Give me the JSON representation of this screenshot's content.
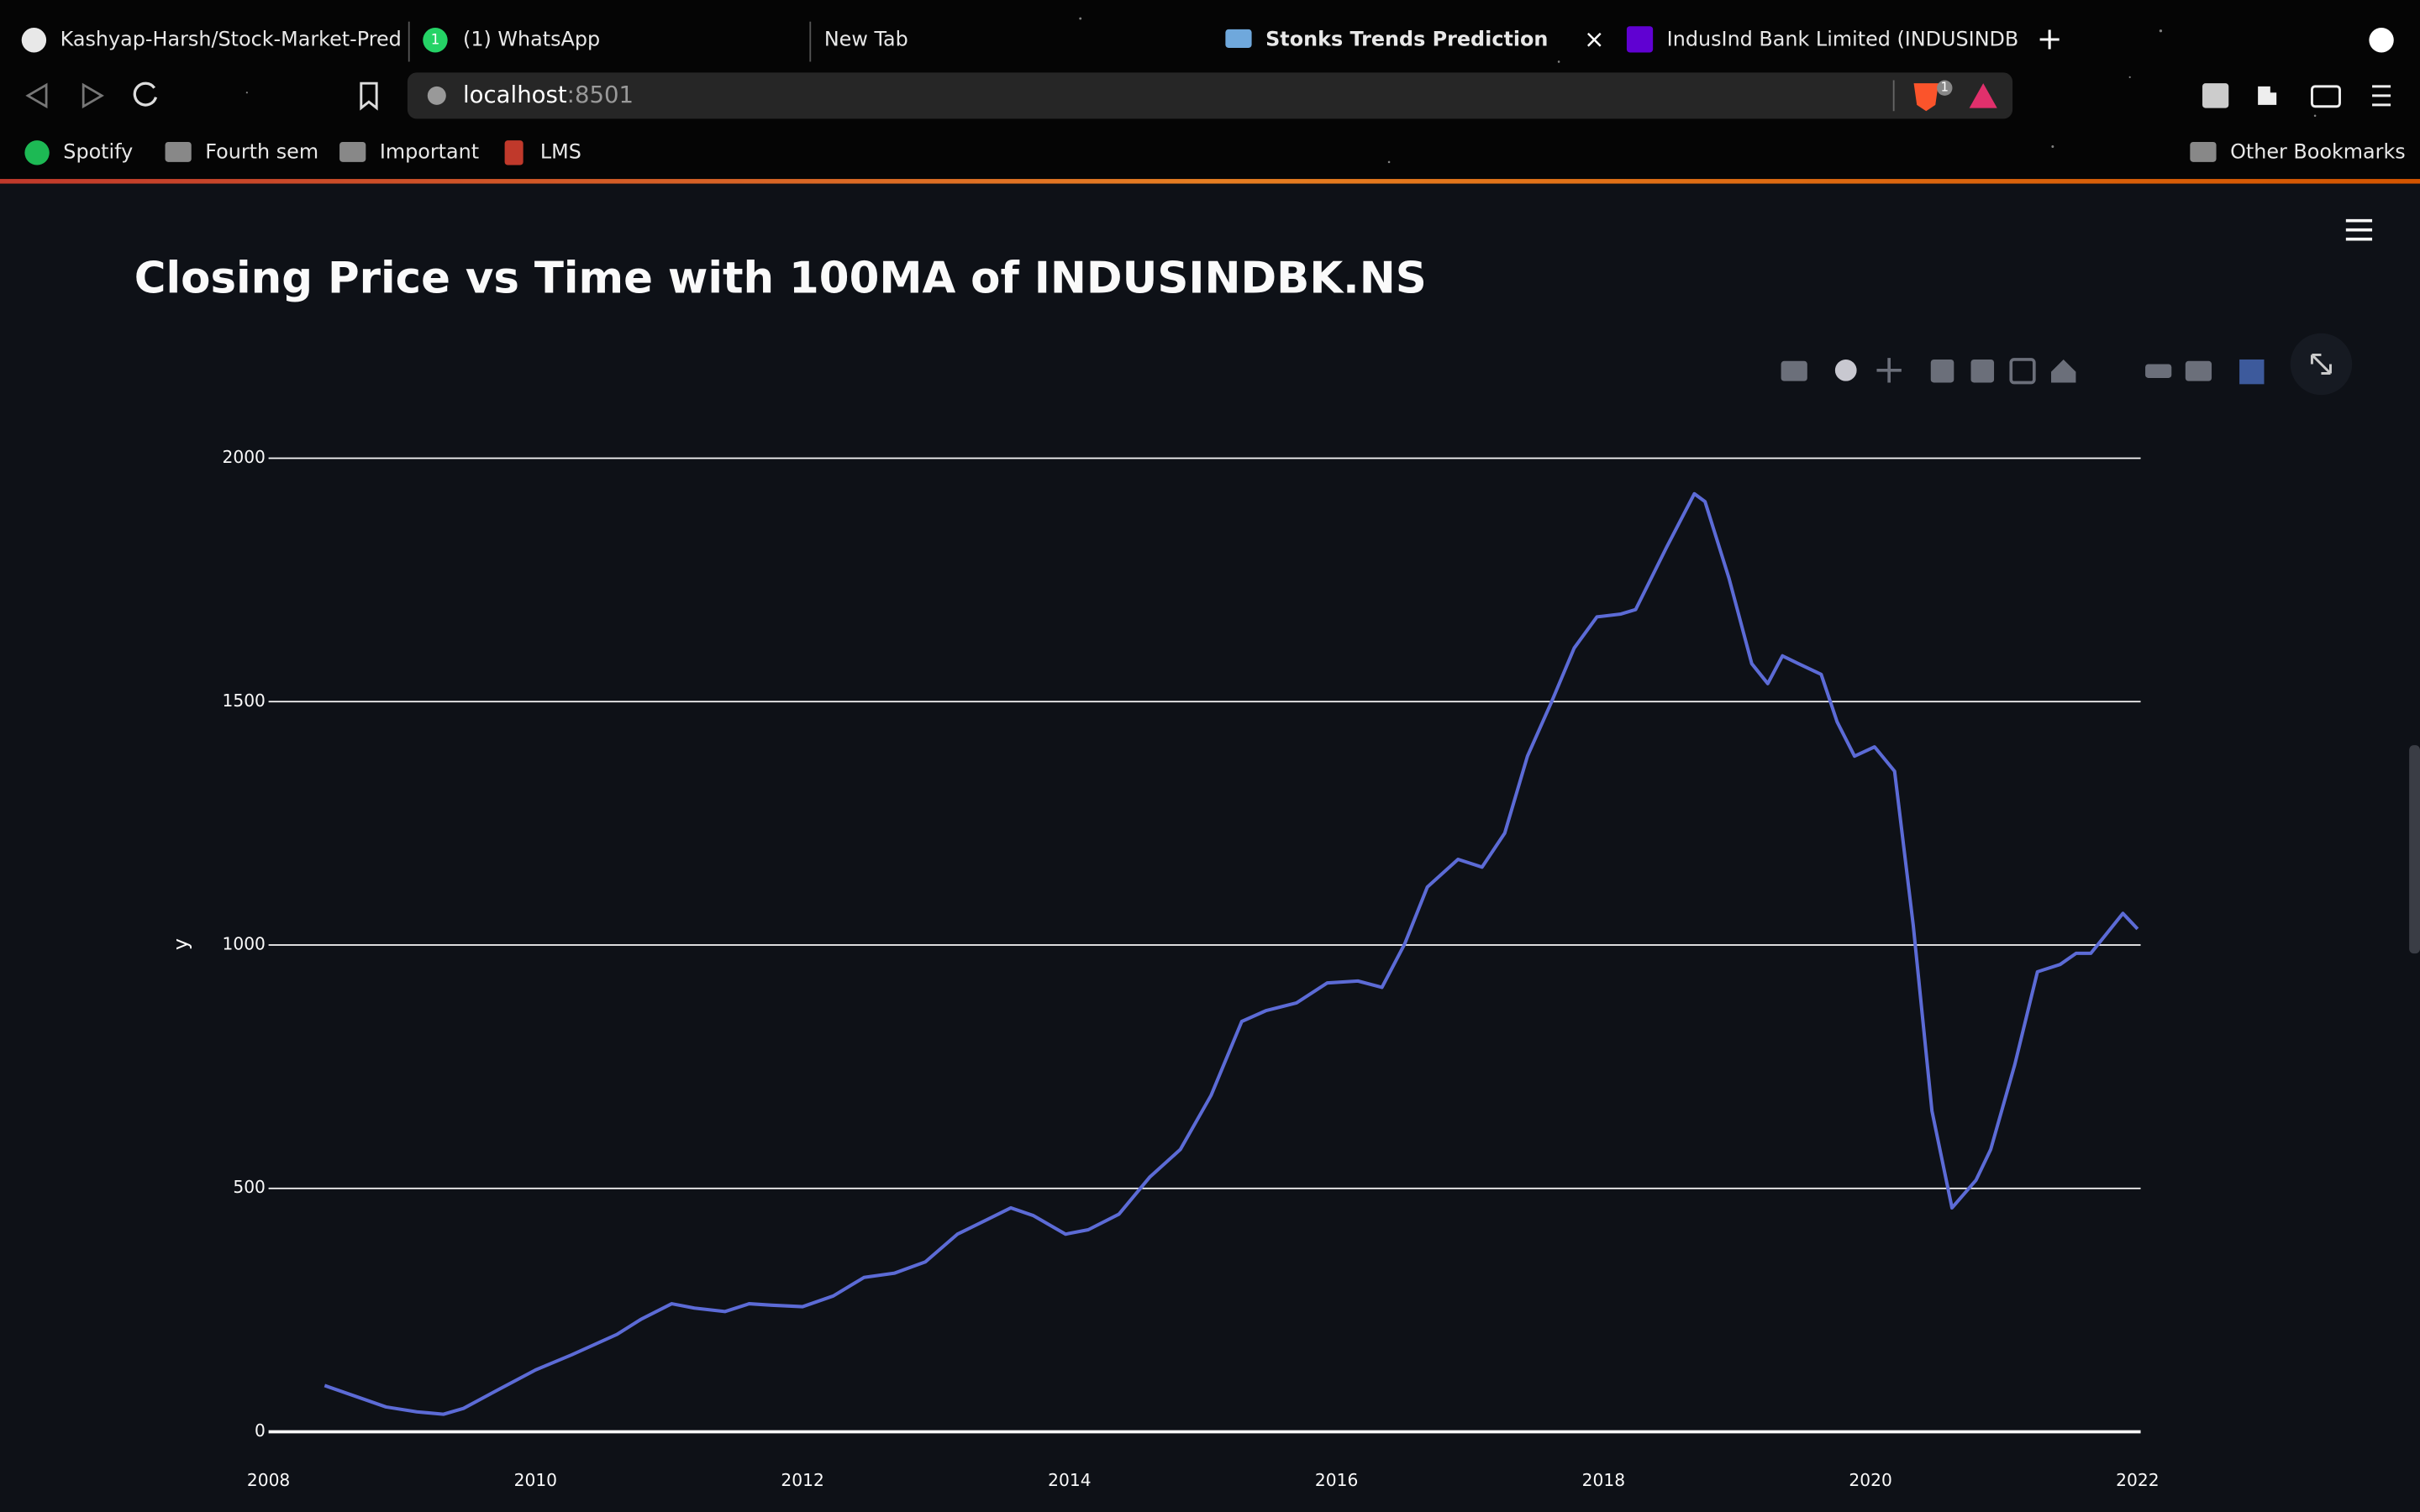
{
  "browser": {
    "tabs": [
      "Kashyap-Harsh/Stock-Market-Pred",
      "(1) WhatsApp",
      "New Tab",
      "Stonks Trends Prediction",
      "IndusInd Bank Limited (INDUSINDB"
    ],
    "whatsapp_badge": "1",
    "url": {
      "host": "localhost",
      "port": ":8501"
    },
    "shield_badge": "1",
    "bookmarks": [
      "Spotify",
      "Fourth sem",
      "Important",
      "LMS"
    ],
    "other_bookmarks": "Other Bookmarks"
  },
  "chart_data": {
    "type": "line",
    "title": "Closing Price vs Time with 100MA of INDUSINDBK.NS",
    "y_label": "y",
    "x": [
      2008.42,
      2008.65,
      2008.88,
      2009.11,
      2009.31,
      2009.46,
      2009.69,
      2010.0,
      2010.27,
      2010.61,
      2010.79,
      2011.02,
      2011.19,
      2011.42,
      2011.6,
      2011.77,
      2012.0,
      2012.23,
      2012.46,
      2012.69,
      2012.92,
      2013.16,
      2013.39,
      2013.56,
      2013.73,
      2013.97,
      2014.14,
      2014.37,
      2014.6,
      2014.83,
      2015.06,
      2015.29,
      2015.47,
      2015.7,
      2015.93,
      2016.16,
      2016.34,
      2016.51,
      2016.68,
      2016.91,
      2017.09,
      2017.26,
      2017.43,
      2017.61,
      2017.78,
      2017.95,
      2018.13,
      2018.24,
      2018.47,
      2018.68,
      2018.76,
      2018.94,
      2019.11,
      2019.23,
      2019.34,
      2019.46,
      2019.63,
      2019.75,
      2019.88,
      2020.03,
      2020.18,
      2020.32,
      2020.46,
      2020.61,
      2020.79,
      2020.9,
      2021.08,
      2021.25,
      2021.42,
      2021.54,
      2021.65,
      2021.75,
      2021.89,
      2022.0
    ],
    "series": [
      {
        "name": "100MA",
        "color": "#5c6bd6",
        "values": [
          95,
          73,
          51,
          41,
          36,
          48,
          82,
          127,
          158,
          200,
          231,
          263,
          254,
          247,
          263,
          260,
          257,
          279,
          317,
          326,
          349,
          406,
          437,
          460,
          444,
          406,
          415,
          447,
          523,
          580,
          691,
          843,
          865,
          881,
          922,
          926,
          913,
          1002,
          1119,
          1176,
          1160,
          1230,
          1388,
          1499,
          1610,
          1674,
          1680,
          1689,
          1816,
          1927,
          1911,
          1753,
          1578,
          1537,
          1594,
          1578,
          1556,
          1458,
          1388,
          1407,
          1357,
          1040,
          659,
          460,
          517,
          580,
          754,
          945,
          960,
          983,
          983,
          1017,
          1065,
          1033
        ]
      }
    ],
    "xlim": [
      2008,
      2022
    ],
    "xticks": [
      2008,
      2010,
      2012,
      2014,
      2016,
      2018,
      2020,
      2022
    ],
    "ylim": [
      0,
      2000
    ],
    "yticks": [
      0,
      500,
      1000,
      1500,
      2000
    ],
    "grid": true
  }
}
